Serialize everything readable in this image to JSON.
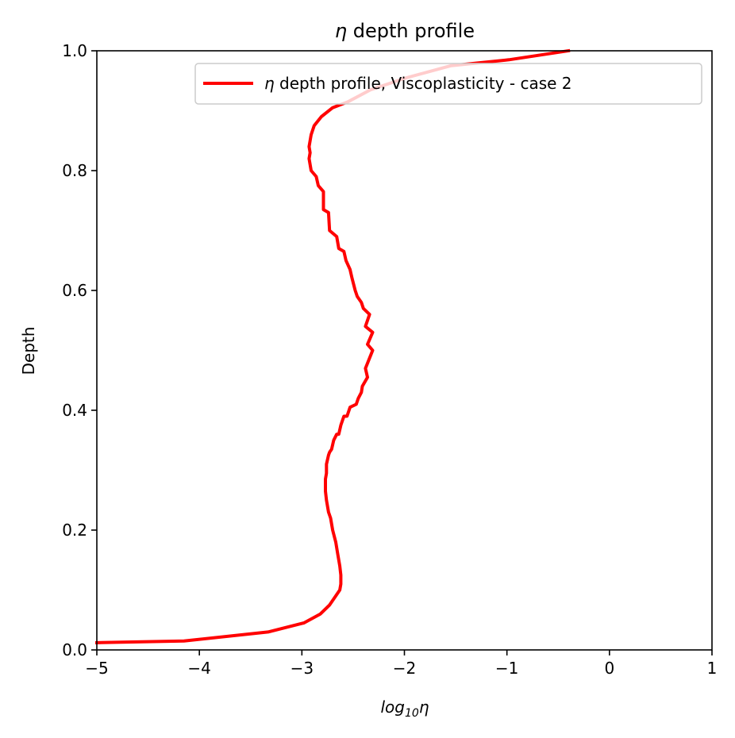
{
  "chart_data": {
    "type": "line",
    "title_symbol": "η",
    "title_rest": " depth profile",
    "xlabel_base": "log",
    "xlabel_sub": "10",
    "xlabel_symbol": "η",
    "ylabel": "Depth",
    "xlim": [
      -5,
      1
    ],
    "ylim": [
      0,
      1
    ],
    "xticks": [
      -5,
      -4,
      -3,
      -2,
      -1,
      0,
      1
    ],
    "xtick_labels": [
      "−5",
      "−4",
      "−3",
      "−2",
      "−1",
      "0",
      "1"
    ],
    "yticks": [
      0.0,
      0.2,
      0.4,
      0.6,
      0.8,
      1.0
    ],
    "ytick_labels": [
      "0.0",
      "0.2",
      "0.4",
      "0.6",
      "0.8",
      "1.0"
    ],
    "grid": false,
    "legend_position": "top-right",
    "series": [
      {
        "name_symbol": "η",
        "name_rest": " depth profile, Viscoplasticity - case 2",
        "color": "#ff0000",
        "x": [
          -5.0,
          -4.15,
          -3.33,
          -2.98,
          -2.82,
          -2.73,
          -2.67,
          -2.63,
          -2.62,
          -2.62,
          -2.63,
          -2.65,
          -2.67,
          -2.7,
          -2.72,
          -2.74,
          -2.76,
          -2.77,
          -2.77,
          -2.77,
          -2.76,
          -2.76,
          -2.74,
          -2.73,
          -2.71,
          -2.69,
          -2.66,
          -2.64,
          -2.62,
          -2.59,
          -2.56,
          -2.53,
          -2.47,
          -2.45,
          -2.42,
          -2.41,
          -2.36,
          -2.38,
          -2.31,
          -2.36,
          -2.31,
          -2.38,
          -2.34,
          -2.4,
          -2.42,
          -2.46,
          -2.48,
          -2.51,
          -2.53,
          -2.57,
          -2.59,
          -2.64,
          -2.66,
          -2.73,
          -2.74,
          -2.79,
          -2.79,
          -2.84,
          -2.86,
          -2.91,
          -2.93,
          -2.92,
          -2.93,
          -2.91,
          -2.88,
          -2.81,
          -2.7,
          -2.55,
          -2.33,
          -1.98,
          -1.55,
          -0.98,
          -0.4
        ],
        "y": [
          0.012,
          0.015,
          0.03,
          0.045,
          0.06,
          0.075,
          0.09,
          0.1,
          0.11,
          0.125,
          0.14,
          0.16,
          0.18,
          0.2,
          0.22,
          0.23,
          0.25,
          0.265,
          0.275,
          0.285,
          0.295,
          0.31,
          0.325,
          0.33,
          0.335,
          0.35,
          0.36,
          0.36,
          0.375,
          0.39,
          0.39,
          0.405,
          0.41,
          0.42,
          0.43,
          0.44,
          0.455,
          0.47,
          0.5,
          0.51,
          0.53,
          0.54,
          0.56,
          0.57,
          0.58,
          0.59,
          0.6,
          0.62,
          0.635,
          0.65,
          0.665,
          0.67,
          0.69,
          0.7,
          0.73,
          0.735,
          0.765,
          0.775,
          0.79,
          0.8,
          0.82,
          0.83,
          0.84,
          0.86,
          0.875,
          0.89,
          0.905,
          0.915,
          0.935,
          0.955,
          0.975,
          0.985,
          1.0
        ]
      }
    ]
  }
}
